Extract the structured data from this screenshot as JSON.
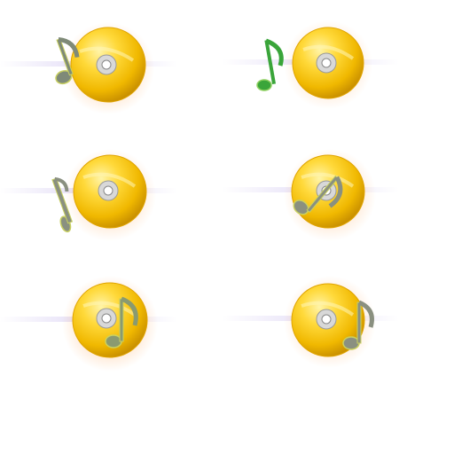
{
  "sprite_sheet": {
    "background": "#ffffff",
    "frames": [
      {
        "icon": "music-note-icon",
        "disc": "gold-cd-disc-icon",
        "note_color": "#7f8a78",
        "note_rotation_deg": -20
      },
      {
        "icon": "music-note-icon",
        "disc": "gold-cd-disc-icon",
        "note_color": "#3aa53a",
        "note_rotation_deg": 0
      },
      {
        "icon": "music-note-icon",
        "disc": "gold-cd-disc-icon",
        "note_color": "#8a9080",
        "note_rotation_deg": 70
      },
      {
        "icon": "music-note-icon",
        "disc": "gold-cd-disc-icon",
        "note_color": "#8a9080",
        "note_rotation_deg": 40
      },
      {
        "icon": "music-note-icon",
        "disc": "gold-cd-disc-icon",
        "note_color": "#8a9a70",
        "note_rotation_deg": 0
      },
      {
        "icon": "music-note-icon",
        "disc": "gold-cd-disc-icon",
        "note_color": "#8a9080",
        "note_rotation_deg": 0
      }
    ],
    "colors": {
      "disc_light": "#ffe97a",
      "disc_mid": "#f3c21a",
      "disc_dark": "#c99000",
      "glow": "#ff9a40",
      "hub": "#d8d8d8",
      "streak": "#dcd4f4"
    }
  }
}
